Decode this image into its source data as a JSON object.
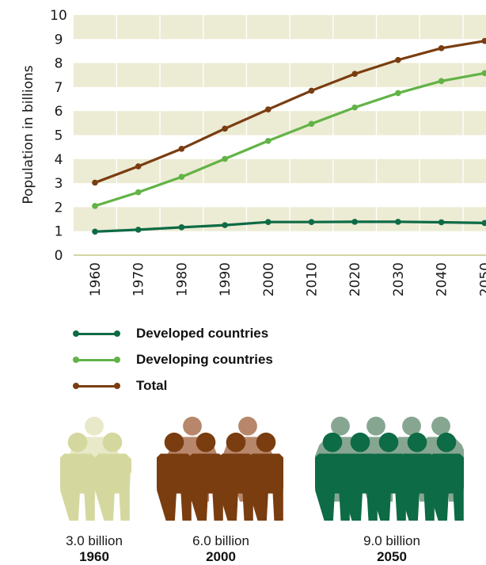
{
  "chart_data": {
    "type": "line",
    "ylabel": "Population in billions",
    "ylim": [
      0,
      10
    ],
    "y_ticks": [
      "0",
      "1",
      "2",
      "3",
      "4",
      "5",
      "6",
      "7",
      "8",
      "9",
      "10"
    ],
    "x": [
      "1960",
      "1970",
      "1980",
      "1990",
      "2000",
      "2010",
      "2020",
      "2030",
      "2040",
      "2050"
    ],
    "series": [
      {
        "name": "Developed countries",
        "color": "#0d6b45",
        "values": [
          0.98,
          1.06,
          1.16,
          1.25,
          1.38,
          1.38,
          1.39,
          1.39,
          1.37,
          1.34
        ]
      },
      {
        "name": "Developing countries",
        "color": "#62b346",
        "values": [
          2.05,
          2.62,
          3.26,
          4.01,
          4.76,
          5.47,
          6.15,
          6.75,
          7.25,
          7.58
        ]
      },
      {
        "name": "Total",
        "color": "#7a3d10",
        "values": [
          3.02,
          3.7,
          4.43,
          5.27,
          6.07,
          6.85,
          7.55,
          8.13,
          8.62,
          8.92
        ]
      }
    ],
    "grid": "alternating horizontal bands",
    "band_color": "#ecebd4",
    "legend_position": "bottom-left"
  },
  "summary": [
    {
      "value": "3.0 billion",
      "year": "1960",
      "front_color": "#d5d89e",
      "back_color": "#e7e9c8"
    },
    {
      "value": "6.0 billion",
      "year": "2000",
      "front_color": "#7a3d10",
      "back_color": "#b8876b"
    },
    {
      "value": "9.0 billion",
      "year": "2050",
      "front_color": "#0d6b45",
      "back_color": "#87a692"
    }
  ]
}
